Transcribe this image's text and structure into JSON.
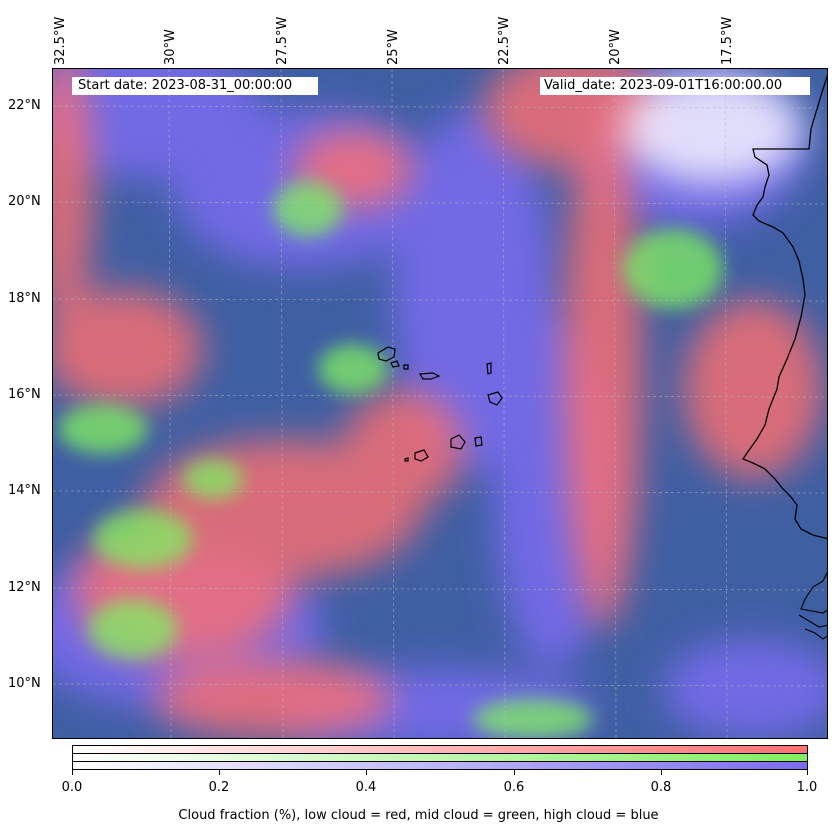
{
  "map": {
    "start_label": "Start date: 2023-08-31_00:00:00",
    "valid_label": "Valid_date: 2023-09-01T16:00:00.00",
    "lon_labels": [
      "32.5°W",
      "30°W",
      "27.5°W",
      "25°W",
      "22.5°W",
      "20°W",
      "17.5°W"
    ],
    "lat_labels": [
      "22°N",
      "20°N",
      "18°N",
      "16°N",
      "14°N",
      "12°N",
      "10°N"
    ],
    "colors": {
      "low_cloud": "#ff7070",
      "mid_cloud": "#80f060",
      "high_cloud": "#7a6cf0",
      "ocean": "#3f5fa3"
    }
  },
  "colorbar": {
    "ticks": [
      "0.0",
      "0.2",
      "0.4",
      "0.6",
      "0.8",
      "1.0"
    ],
    "label": "Cloud fraction (%), low cloud = red, mid cloud = green, high cloud = blue"
  }
}
